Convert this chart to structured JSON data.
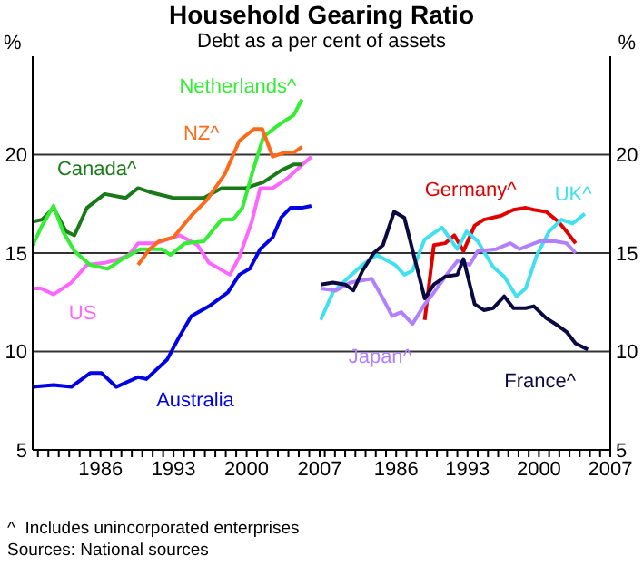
{
  "chart_data": [
    {
      "type": "line",
      "title": "Household Gearing Ratio",
      "subtitle": "Debt as a per cent of assets",
      "ylabel": "%",
      "xlim": [
        1979.5,
        2007
      ],
      "ylim": [
        5,
        25
      ],
      "yticks": [
        5,
        10,
        15,
        20
      ],
      "grid": "y",
      "marker": "none",
      "line_style": "solid",
      "xticks": [
        {
          "value": 1980,
          "label": null
        },
        {
          "value": 1981,
          "label": null
        },
        {
          "value": 1982,
          "label": null
        },
        {
          "value": 1983,
          "label": null
        },
        {
          "value": 1984,
          "label": null
        },
        {
          "value": 1985,
          "label": null
        },
        1986,
        {
          "value": 1987,
          "label": null
        },
        {
          "value": 1988,
          "label": null
        },
        {
          "value": 1989,
          "label": null
        },
        {
          "value": 1990,
          "label": null
        },
        {
          "value": 1991,
          "label": null
        },
        {
          "value": 1992,
          "label": null
        },
        1993,
        {
          "value": 1994,
          "label": null
        },
        {
          "value": 1995,
          "label": null
        },
        {
          "value": 1996,
          "label": null
        },
        {
          "value": 1997,
          "label": null
        },
        {
          "value": 1998,
          "label": null
        },
        {
          "value": 1999,
          "label": null
        },
        2000,
        {
          "value": 2001,
          "label": null
        },
        {
          "value": 2002,
          "label": null
        },
        {
          "value": 2003,
          "label": null
        },
        {
          "value": 2004,
          "label": null
        },
        {
          "value": 2005,
          "label": null
        },
        {
          "value": 2006,
          "label": null
        },
        2007
      ],
      "series": [
        {
          "name": "Australia",
          "color": "#0000e6",
          "x": [
            1979.5,
            1981.5,
            1983.2,
            1985,
            1986.1,
            1987.5,
            1989.6,
            1990.4,
            1992.4,
            1993.6,
            1994.7,
            1996.4,
            1998.2,
            1999.3,
            2000.3,
            2001.3,
            2002.5,
            2003.3,
            2004.2,
            2005.3,
            2006.2
          ],
          "values": [
            8.2,
            8.3,
            8.2,
            8.9,
            8.9,
            8.2,
            8.7,
            8.6,
            9.6,
            10.8,
            11.8,
            12.3,
            13,
            13.9,
            14.2,
            15.2,
            15.8,
            16.8,
            17.3,
            17.3,
            17.4
          ]
        },
        {
          "name": "US",
          "color": "#ff66ff",
          "x": [
            1979.5,
            1980.3,
            1981.5,
            1983.2,
            1984.7,
            1986.4,
            1987.8,
            1988.7,
            1989.6,
            1991.3,
            1993.6,
            1995.3,
            1996.4,
            1998.4,
            1999.3,
            2000.5,
            2001.3,
            2002.5,
            2003.9,
            2006.2
          ],
          "values": [
            13.2,
            13.2,
            12.9,
            13.5,
            14.4,
            14.5,
            14.7,
            14.9,
            15.5,
            15.5,
            15.9,
            15.4,
            14.5,
            13.9,
            14.8,
            16.6,
            18.3,
            18.3,
            18.8,
            19.9
          ]
        },
        {
          "name": "Canada^",
          "color": "#1a7a1a",
          "x": [
            1979.5,
            1980.4,
            1981.5,
            1982.7,
            1983.5,
            1984.7,
            1986.4,
            1988.4,
            1989.6,
            1990.7,
            1993,
            1995.9,
            1997.6,
            1999.9,
            2001.6,
            2003.3,
            2004.5,
            2005.3
          ],
          "values": [
            16.6,
            16.7,
            17.3,
            16.1,
            15.9,
            17.3,
            18,
            17.8,
            18.3,
            18.1,
            17.8,
            17.8,
            18.3,
            18.3,
            18.6,
            19.2,
            19.5,
            19.5
          ]
        },
        {
          "name": "Netherlands^",
          "color": "#33ee33",
          "x": [
            1979.5,
            1980.4,
            1981.5,
            1982.4,
            1983.5,
            1985,
            1986.7,
            1988.1,
            1989.8,
            1991.9,
            1992.7,
            1994.1,
            1995.9,
            1997.6,
            1998.7,
            1999.6,
            2000.5,
            2001.6,
            2002.8,
            2003.9,
            2004.5,
            2005.3
          ],
          "values": [
            15.4,
            16.4,
            17.4,
            16.1,
            15.1,
            14.4,
            14.2,
            14.7,
            15.2,
            15.2,
            14.9,
            15.5,
            15.6,
            16.7,
            16.7,
            17.3,
            19,
            20.9,
            21.4,
            21.8,
            22,
            22.8
          ]
        },
        {
          "name": "NZ^",
          "color": "#ff6a1a",
          "x": [
            1989.6,
            1990.7,
            1991.6,
            1993,
            1994.7,
            1996.2,
            1997.9,
            1999.3,
            2000.7,
            2001.5,
            2002.5,
            2003.6,
            2004.5,
            2005.3
          ],
          "values": [
            14.4,
            15.2,
            15.6,
            15.8,
            16.9,
            17.7,
            19,
            20.7,
            21.3,
            21.3,
            19.9,
            20.1,
            20.1,
            20.4
          ]
        }
      ]
    },
    {
      "type": "line",
      "ylabel": "%",
      "xlim": [
        1978.5,
        2007
      ],
      "ylim": [
        5,
        25
      ],
      "yticks": [
        5,
        10,
        15,
        20
      ],
      "grid": "y",
      "marker": "none",
      "line_style": "solid",
      "xticks": [
        {
          "value": 1979,
          "label": null
        },
        {
          "value": 1980,
          "label": null
        },
        {
          "value": 1981,
          "label": null
        },
        {
          "value": 1982,
          "label": null
        },
        {
          "value": 1983,
          "label": null
        },
        {
          "value": 1984,
          "label": null
        },
        {
          "value": 1985,
          "label": null
        },
        1986,
        {
          "value": 1987,
          "label": null
        },
        {
          "value": 1988,
          "label": null
        },
        {
          "value": 1989,
          "label": null
        },
        {
          "value": 1990,
          "label": null
        },
        {
          "value": 1991,
          "label": null
        },
        {
          "value": 1992,
          "label": null
        },
        1993,
        {
          "value": 1994,
          "label": null
        },
        {
          "value": 1995,
          "label": null
        },
        {
          "value": 1996,
          "label": null
        },
        {
          "value": 1997,
          "label": null
        },
        {
          "value": 1998,
          "label": null
        },
        {
          "value": 1999,
          "label": null
        },
        2000,
        {
          "value": 2001,
          "label": null
        },
        {
          "value": 2002,
          "label": null
        },
        {
          "value": 2003,
          "label": null
        },
        {
          "value": 2004,
          "label": null
        },
        {
          "value": 2005,
          "label": null
        },
        {
          "value": 2006,
          "label": null
        },
        2007
      ],
      "annotations": [
        "^  Includes unincorporated enterprises",
        "Sources: National sources"
      ],
      "series": [
        {
          "name": "Germany^",
          "color": "#e00000",
          "x": [
            1988.8,
            1989.7,
            1990.8,
            1991.7,
            1992.6,
            1993.7,
            1994.6,
            1996.3,
            1997.5,
            1998.7,
            1999.5,
            2000.7,
            2001.9,
            2002.7,
            2003.6
          ],
          "values": [
            11.6,
            15.4,
            15.5,
            15.9,
            15.1,
            16.4,
            16.7,
            16.9,
            17.2,
            17.3,
            17.2,
            17.1,
            16.6,
            16.1,
            15.5
          ]
        },
        {
          "name": "UK^",
          "color": "#40e0f0",
          "x": [
            1978.6,
            1979.8,
            1981.2,
            1982.7,
            1984.1,
            1985.9,
            1986.8,
            1987.6,
            1988.8,
            1990.5,
            1992,
            1992.9,
            1994,
            1995.5,
            1996.6,
            1997.8,
            1998.7,
            1999.8,
            2001,
            2002.2,
            2003.3,
            2004.5
          ],
          "values": [
            11.6,
            13,
            13.7,
            14.4,
            14.9,
            14.4,
            13.9,
            14.1,
            15.7,
            16.3,
            15.2,
            16.1,
            15.6,
            14.3,
            13.8,
            12.8,
            13.2,
            14.9,
            16.1,
            16.7,
            16.5,
            17
          ]
        },
        {
          "name": "Japan^",
          "color": "#b080ff",
          "x": [
            1978.6,
            1980.1,
            1981.5,
            1983.6,
            1984.7,
            1985.6,
            1986.5,
            1987.6,
            1988.8,
            1989.7,
            1991.1,
            1992,
            1993.2,
            1994,
            1995.8,
            1997.2,
            1998.1,
            2000.1,
            2001.6,
            2002.7,
            2003.6
          ],
          "values": [
            13.2,
            13.1,
            13.5,
            13.7,
            12.7,
            11.8,
            12,
            11.4,
            12.4,
            13,
            14,
            14.6,
            14.4,
            15.1,
            15.2,
            15.5,
            15.2,
            15.6,
            15.6,
            15.5,
            15
          ]
        },
        {
          "name": "France^",
          "color": "#0a0a40",
          "x": [
            1978.6,
            1979.8,
            1981,
            1981.8,
            1982.7,
            1983.8,
            1984.7,
            1985.8,
            1986.8,
            1988.8,
            1989.7,
            1990.8,
            1992,
            1992.6,
            1993.7,
            1994.6,
            1995.5,
            1996.6,
            1997.5,
            1998.7,
            1999.5,
            2000.7,
            2001.9,
            2002.7,
            2003.6,
            2004.8
          ],
          "values": [
            13.4,
            13.5,
            13.4,
            13.1,
            14.1,
            15,
            15.4,
            17.1,
            16.8,
            12.7,
            13.4,
            13.8,
            13.9,
            14.7,
            12.4,
            12.1,
            12.2,
            12.8,
            12.2,
            12.2,
            12.3,
            11.7,
            11.3,
            11,
            10.4,
            10.1
          ]
        }
      ]
    }
  ]
}
